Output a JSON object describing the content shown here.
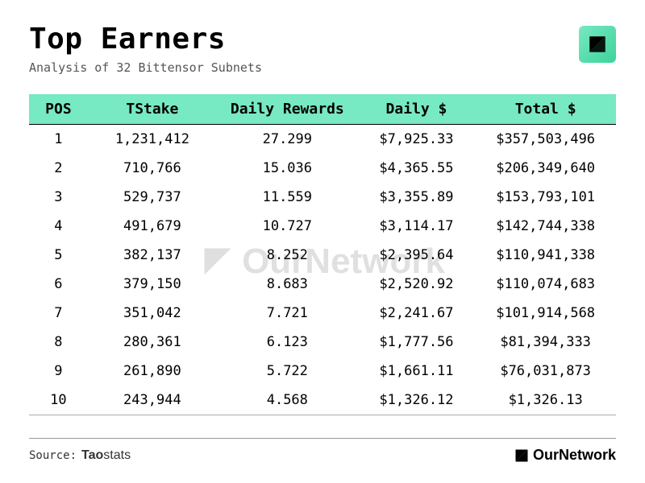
{
  "title": "Top Earners",
  "subtitle": "Analysis of 32 Bittensor Subnets",
  "watermark_text": "OurNetwork",
  "source_label": "Source:",
  "source_brand_strong": "Tao",
  "source_brand_light": "stats",
  "footer_brand": "OurNetwork",
  "colors": {
    "header_bg": "#77e9c3",
    "badge_gradient_start": "#77e9c3",
    "badge_gradient_end": "#3dd39a",
    "text": "#000000",
    "subtitle": "#555555",
    "divider": "#999999"
  },
  "typography": {
    "title_pt": 36,
    "subtitle_pt": 15,
    "th_pt": 18,
    "td_pt": 17,
    "font_family": "monospace"
  },
  "table": {
    "type": "table",
    "columns": [
      "POS",
      "TStake",
      "Daily Rewards",
      "Daily $",
      "Total $"
    ],
    "column_widths_pct": [
      10,
      22,
      24,
      20,
      24
    ],
    "alignment": [
      "center",
      "center",
      "center",
      "center",
      "center"
    ],
    "rows": [
      [
        "1",
        "1,231,412",
        "27.299",
        "$7,925.33",
        "$357,503,496"
      ],
      [
        "2",
        "710,766",
        "15.036",
        "$4,365.55",
        "$206,349,640"
      ],
      [
        "3",
        "529,737",
        "11.559",
        "$3,355.89",
        "$153,793,101"
      ],
      [
        "4",
        "491,679",
        "10.727",
        "$3,114.17",
        "$142,744,338"
      ],
      [
        "5",
        "382,137",
        "8.252",
        "$2,395.64",
        "$110,941,338"
      ],
      [
        "6",
        "379,150",
        "8.683",
        "$2,520.92",
        "$110,074,683"
      ],
      [
        "7",
        "351,042",
        "7.721",
        "$2,241.67",
        "$101,914,568"
      ],
      [
        "8",
        "280,361",
        "6.123",
        "$1,777.56",
        "$81,394,333"
      ],
      [
        "9",
        "261,890",
        "5.722",
        "$1,661.11",
        "$76,031,873"
      ],
      [
        "10",
        "243,944",
        "4.568",
        "$1,326.12",
        "$1,326.13"
      ]
    ]
  }
}
